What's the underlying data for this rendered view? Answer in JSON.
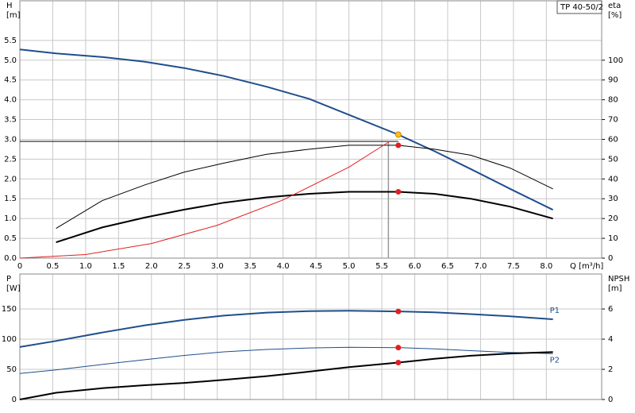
{
  "chart_data": [
    {
      "type": "line",
      "title": "TP 40-50/2",
      "ylabel": [
        "H",
        "[m]"
      ],
      "y2label": [
        "eta",
        "[%]"
      ],
      "xlabel": "Q [m³/h]",
      "x": [
        0,
        0.55,
        1.25,
        1.9,
        2.5,
        3.1,
        3.75,
        4.4,
        5.0,
        5.75,
        6.3,
        6.85,
        7.45,
        8.1
      ],
      "xlim": [
        0,
        8.84
      ],
      "xticks": [
        {
          "value": 0,
          "label": "0"
        },
        0.5,
        {
          "value": 1,
          "label": "1.0"
        },
        1.5,
        {
          "value": 2,
          "label": "2.0"
        },
        2.5,
        {
          "value": 3,
          "label": "3.0"
        },
        3.5,
        {
          "value": 4,
          "label": "4.0"
        },
        4.5,
        {
          "value": 5,
          "label": "5.0"
        },
        5.5,
        {
          "value": 6,
          "label": "6.0"
        },
        6.5,
        {
          "value": 7,
          "label": "7.0"
        },
        7.5,
        {
          "value": 8,
          "label": "8.0"
        }
      ],
      "xtick_labels": true,
      "ylim": [
        0,
        6.5
      ],
      "yticks": [
        {
          "value": 0,
          "label": "0.0"
        },
        0.5,
        {
          "value": 1,
          "label": "1.0"
        },
        1.5,
        {
          "value": 2,
          "label": "2.0"
        },
        2.5,
        {
          "value": 3,
          "label": "3.0"
        },
        3.5,
        {
          "value": 4,
          "label": "4.0"
        },
        4.5,
        {
          "value": 5,
          "label": "5.0"
        },
        5.5
      ],
      "y2lim": [
        0,
        130
      ],
      "y2ticks": [
        0,
        10,
        20,
        30,
        40,
        50,
        60,
        70,
        80,
        90,
        100
      ],
      "grid": true,
      "highlight_x": 5.75,
      "series": [
        {
          "color": "#1f4e8c",
          "width": 2,
          "highlight_color": "#f5c518",
          "values": [
            5.27,
            5.17,
            5.08,
            4.96,
            4.8,
            4.6,
            4.33,
            4.02,
            3.62,
            3.12,
            2.7,
            2.25,
            1.75,
            1.22
          ]
        },
        {
          "color": "#000000",
          "width": 1,
          "axis": "y2",
          "highlight_color": "#e02020",
          "values": [
            null,
            15,
            29,
            37,
            43.5,
            48,
            52.5,
            55,
            57,
            57,
            55,
            52,
            45.5,
            35
          ]
        },
        {
          "color": "#000000",
          "width": 2,
          "axis": "y2",
          "highlight_color": "#e02020",
          "values": [
            null,
            8,
            15.5,
            20.5,
            24.5,
            28,
            30.7,
            32.5,
            33.5,
            33.5,
            32.5,
            30,
            26,
            20
          ]
        },
        {
          "color": "#e02020",
          "width": 1,
          "x": [
            0,
            1,
            2,
            3,
            4,
            5,
            5.62
          ],
          "values": [
            0,
            0.09,
            0.37,
            0.83,
            1.47,
            2.3,
            2.95
          ]
        }
      ],
      "ref_lines": [
        {
          "y": 2.95,
          "color": "#000000"
        },
        {
          "x": 5.6,
          "color": "#999999"
        }
      ]
    },
    {
      "type": "line",
      "ylabel": [
        "P",
        "[W]"
      ],
      "y2label": [
        "NPSH",
        "[m]"
      ],
      "x": [
        0,
        0.55,
        1.25,
        1.9,
        2.5,
        3.1,
        3.75,
        4.4,
        5.0,
        5.75,
        6.3,
        6.85,
        7.45,
        8.1
      ],
      "xlim": [
        0,
        8.84
      ],
      "xticks": [
        0,
        0.5,
        1,
        1.5,
        2,
        2.5,
        3,
        3.5,
        4,
        4.5,
        5,
        5.5,
        6,
        6.5,
        7,
        7.5,
        8
      ],
      "xtick_labels": false,
      "ylim": [
        0,
        208
      ],
      "yticks": [
        0,
        50,
        100,
        150
      ],
      "y2lim": [
        0,
        8.32
      ],
      "y2ticks": [
        0,
        2,
        4,
        6
      ],
      "grid": true,
      "highlight_x": 5.75,
      "series": [
        {
          "name": "P1",
          "label_position": "above",
          "color": "#1f4e8c",
          "width": 2,
          "highlight_color": "#e02020",
          "values": [
            87,
            97,
            111,
            123,
            132,
            139,
            144,
            146.5,
            147,
            146,
            144.5,
            141.5,
            138,
            133
          ]
        },
        {
          "name": "P2",
          "label_position": "below",
          "color": "#1f4e8c",
          "width": 1,
          "highlight_color": "#e02020",
          "values": [
            43,
            49,
            58,
            66,
            73,
            79,
            83,
            85.5,
            86.5,
            86,
            84,
            81,
            78,
            76
          ]
        },
        {
          "color": "#000000",
          "width": 2,
          "axis": "y2",
          "highlight_color": "#e02020",
          "values": [
            0,
            0.45,
            0.75,
            0.95,
            1.1,
            1.3,
            1.55,
            1.85,
            2.15,
            2.45,
            2.7,
            2.9,
            3.05,
            3.15
          ]
        }
      ]
    }
  ]
}
